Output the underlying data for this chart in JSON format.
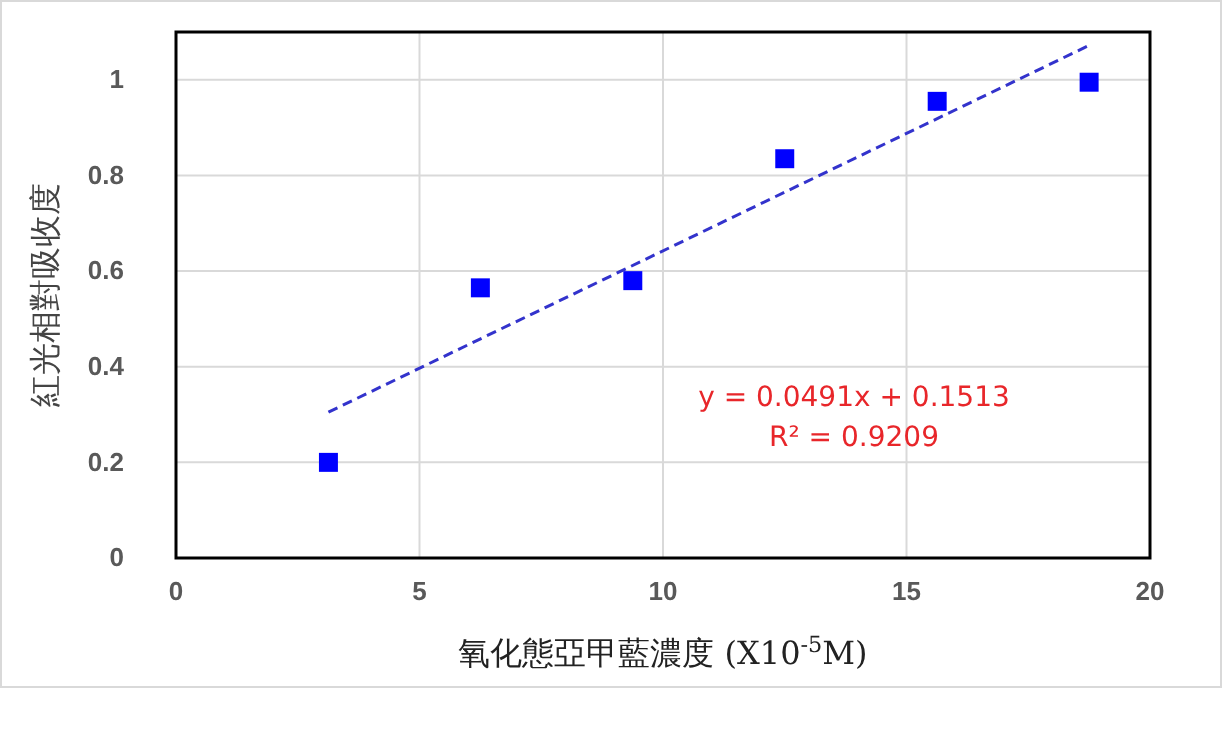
{
  "chart_data": {
    "type": "scatter",
    "xlabel": "氧化態亞甲藍濃度 (X10$^{-5}$M)",
    "ylabel": "紅光相對吸收度",
    "xlim": [
      0,
      20
    ],
    "xticks": [
      0,
      5,
      10,
      15,
      20
    ],
    "ylim": [
      0,
      1.1
    ],
    "yticks": [
      0,
      0.2,
      0.4,
      0.6,
      0.8,
      1
    ],
    "grid": true,
    "series": [
      {
        "color": "#0000ff",
        "marker": "square",
        "x": [
          3.13,
          6.25,
          9.38,
          12.5,
          15.63,
          18.75
        ],
        "values": [
          0.2,
          0.565,
          0.58,
          0.835,
          0.955,
          0.995
        ]
      },
      {
        "type": "line",
        "color": "#3333cc",
        "line_style": "dashed",
        "marker": "none",
        "x": [
          3.13,
          18.75
        ],
        "values": [
          0.305,
          1.072
        ]
      }
    ],
    "annotations": [
      "y = 0.0491x + 0.1513",
      "R² = 0.9209"
    ]
  }
}
